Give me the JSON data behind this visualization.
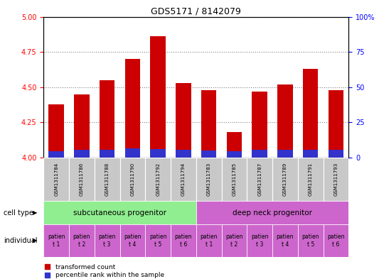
{
  "title": "GDS5171 / 8142079",
  "samples": [
    "GSM1311784",
    "GSM1311786",
    "GSM1311788",
    "GSM1311790",
    "GSM1311792",
    "GSM1311794",
    "GSM1311783",
    "GSM1311785",
    "GSM1311787",
    "GSM1311789",
    "GSM1311791",
    "GSM1311793"
  ],
  "red_values": [
    4.38,
    4.45,
    4.55,
    4.7,
    4.86,
    4.53,
    4.48,
    4.18,
    4.47,
    4.52,
    4.63,
    4.48
  ],
  "blue_values": [
    0.048,
    0.058,
    0.055,
    0.065,
    0.06,
    0.055,
    0.052,
    0.048,
    0.058,
    0.058,
    0.058,
    0.058
  ],
  "ylim_left": [
    4.0,
    5.0
  ],
  "ylim_right": [
    0,
    100
  ],
  "yticks_left": [
    4.0,
    4.25,
    4.5,
    4.75,
    5.0
  ],
  "yticks_right": [
    0,
    25,
    50,
    75,
    100
  ],
  "bar_color_red": "#cc0000",
  "bar_color_blue": "#3333cc",
  "bar_width": 0.6,
  "cell_type_group1": "subcutaneous progenitor",
  "cell_type_group2": "deep neck progenitor",
  "cell_type_color1": "#90ee90",
  "cell_type_color2": "#cc66cc",
  "individual_color": "#cc66cc",
  "tick_bg_color": "#c8c8c8",
  "legend_red": "transformed count",
  "legend_blue": "percentile rank within the sample",
  "title_fontsize": 9,
  "axis_label_fontsize": 7,
  "sample_fontsize": 5,
  "indiv_fontsize": 5.5,
  "celltype_fontsize": 7.5
}
